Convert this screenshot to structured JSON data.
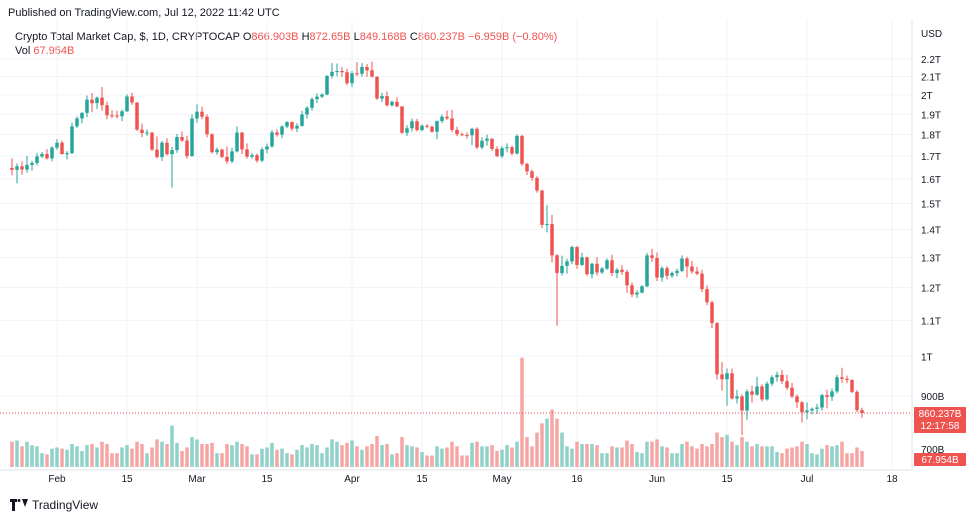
{
  "published": "Published on TradingView.com, Jul 12, 2022 11:42 UTC",
  "legend": {
    "symbol": "Crypto Total Market Cap, $, 1D, CRYPTOCAP",
    "o_label": "O",
    "o": "866.903B",
    "h_label": "H",
    "h": "872.65B",
    "l_label": "L",
    "l": "849.168B",
    "c_label": "C",
    "c": "860.237B",
    "change": "−6.959B (−0.80%)",
    "vol_label": "Vol",
    "vol": "67.954B"
  },
  "axis": {
    "currency": "USD",
    "y_ticks": [
      "2.2T",
      "2.1T",
      "2T",
      "1.9T",
      "1.8T",
      "1.7T",
      "1.6T",
      "1.5T",
      "1.4T",
      "1.3T",
      "1.2T",
      "1.1T",
      "1T",
      "900B",
      "700B"
    ],
    "x_ticks": [
      "Feb",
      "15",
      "Mar",
      "15",
      "Apr",
      "15",
      "May",
      "16",
      "Jun",
      "15",
      "Jul",
      "18"
    ],
    "price_badge": "860.237B",
    "countdown_badge": "12:17:58",
    "volume_badge": "67.954B"
  },
  "brand": "TradingView",
  "colors": {
    "up": "#26a69a",
    "down": "#ef5350",
    "vol_up": "#8fd2c9",
    "vol_down": "#f5a5a4",
    "grid": "#f0f3fa"
  },
  "chart_data": {
    "type": "candlestick",
    "title": "Crypto Total Market Cap, $, 1D, CRYPTOCAP",
    "ylabel": "USD",
    "yscale": "log",
    "ylim": [
      680,
      2300
    ],
    "x_start": "2022-01-23",
    "x_end": "2022-07-12",
    "points": [
      [
        "2022-01-23",
        1648,
        1690,
        1616,
        1640,
        0.22
      ],
      [
        "2022-01-24",
        1640,
        1668,
        1582,
        1655,
        0.23
      ],
      [
        "2022-01-25",
        1655,
        1677,
        1618,
        1641,
        0.18
      ],
      [
        "2022-01-26",
        1641,
        1701,
        1627,
        1661,
        0.22
      ],
      [
        "2022-01-27",
        1661,
        1679,
        1637,
        1670,
        0.19
      ],
      [
        "2022-01-28",
        1670,
        1715,
        1659,
        1699,
        0.18
      ],
      [
        "2022-01-29",
        1699,
        1719,
        1692,
        1710,
        0.12
      ],
      [
        "2022-01-30",
        1710,
        1732,
        1685,
        1690,
        0.11
      ],
      [
        "2022-01-31",
        1690,
        1746,
        1677,
        1739,
        0.16
      ],
      [
        "2022-02-01",
        1739,
        1779,
        1729,
        1762,
        0.17
      ],
      [
        "2022-02-02",
        1762,
        1771,
        1712,
        1709,
        0.16
      ],
      [
        "2022-02-03",
        1709,
        1723,
        1686,
        1714,
        0.15
      ],
      [
        "2022-02-04",
        1714,
        1858,
        1710,
        1840,
        0.2
      ],
      [
        "2022-02-05",
        1840,
        1889,
        1832,
        1879,
        0.18
      ],
      [
        "2022-02-06",
        1879,
        1912,
        1855,
        1907,
        0.14
      ],
      [
        "2022-02-07",
        1907,
        1997,
        1886,
        1975,
        0.19
      ],
      [
        "2022-02-08",
        1975,
        2010,
        1911,
        1957,
        0.2
      ],
      [
        "2022-02-09",
        1957,
        1992,
        1927,
        1986,
        0.17
      ],
      [
        "2022-02-10",
        1986,
        2042,
        1918,
        1946,
        0.22
      ],
      [
        "2022-02-11",
        1946,
        1964,
        1875,
        1895,
        0.2
      ],
      [
        "2022-02-12",
        1895,
        1920,
        1881,
        1894,
        0.12
      ],
      [
        "2022-02-13",
        1894,
        1918,
        1879,
        1890,
        0.12
      ],
      [
        "2022-02-14",
        1890,
        1925,
        1865,
        1915,
        0.17
      ],
      [
        "2022-02-15",
        1915,
        2003,
        1912,
        1992,
        0.19
      ],
      [
        "2022-02-16",
        1992,
        2011,
        1948,
        1960,
        0.16
      ],
      [
        "2022-02-17",
        1960,
        1963,
        1818,
        1824,
        0.22
      ],
      [
        "2022-02-18",
        1824,
        1854,
        1788,
        1808,
        0.2
      ],
      [
        "2022-02-19",
        1808,
        1825,
        1794,
        1810,
        0.12
      ],
      [
        "2022-02-20",
        1810,
        1812,
        1724,
        1730,
        0.17
      ],
      [
        "2022-02-21",
        1730,
        1792,
        1691,
        1696,
        0.24
      ],
      [
        "2022-02-22",
        1696,
        1770,
        1679,
        1762,
        0.22
      ],
      [
        "2022-02-23",
        1762,
        1783,
        1703,
        1709,
        0.2
      ],
      [
        "2022-02-24",
        1709,
        1743,
        1564,
        1728,
        0.36
      ],
      [
        "2022-02-25",
        1728,
        1804,
        1715,
        1789,
        0.21
      ],
      [
        "2022-02-26",
        1789,
        1815,
        1766,
        1772,
        0.14
      ],
      [
        "2022-02-27",
        1772,
        1795,
        1689,
        1701,
        0.17
      ],
      [
        "2022-02-28",
        1701,
        1899,
        1697,
        1879,
        0.26
      ],
      [
        "2022-03-01",
        1879,
        1951,
        1858,
        1913,
        0.24
      ],
      [
        "2022-03-02",
        1913,
        1939,
        1874,
        1888,
        0.2
      ],
      [
        "2022-03-03",
        1888,
        1901,
        1787,
        1802,
        0.2
      ],
      [
        "2022-03-04",
        1802,
        1806,
        1712,
        1718,
        0.21
      ],
      [
        "2022-03-05",
        1718,
        1739,
        1706,
        1730,
        0.12
      ],
      [
        "2022-03-06",
        1730,
        1735,
        1690,
        1697,
        0.12
      ],
      [
        "2022-03-07",
        1697,
        1744,
        1665,
        1677,
        0.2
      ],
      [
        "2022-03-08",
        1677,
        1738,
        1669,
        1722,
        0.19
      ],
      [
        "2022-03-09",
        1722,
        1840,
        1717,
        1810,
        0.22
      ],
      [
        "2022-03-10",
        1810,
        1813,
        1709,
        1731,
        0.2
      ],
      [
        "2022-03-11",
        1731,
        1759,
        1689,
        1698,
        0.18
      ],
      [
        "2022-03-12",
        1698,
        1715,
        1689,
        1705,
        0.11
      ],
      [
        "2022-03-13",
        1705,
        1712,
        1671,
        1680,
        0.11
      ],
      [
        "2022-03-14",
        1680,
        1741,
        1673,
        1731,
        0.16
      ],
      [
        "2022-03-15",
        1731,
        1758,
        1713,
        1745,
        0.17
      ],
      [
        "2022-03-16",
        1745,
        1822,
        1738,
        1811,
        0.21
      ],
      [
        "2022-03-17",
        1811,
        1826,
        1790,
        1800,
        0.15
      ],
      [
        "2022-03-18",
        1800,
        1846,
        1783,
        1839,
        0.16
      ],
      [
        "2022-03-19",
        1839,
        1865,
        1831,
        1861,
        0.12
      ],
      [
        "2022-03-20",
        1861,
        1865,
        1817,
        1829,
        0.11
      ],
      [
        "2022-03-21",
        1829,
        1855,
        1812,
        1843,
        0.15
      ],
      [
        "2022-03-22",
        1843,
        1917,
        1838,
        1899,
        0.19
      ],
      [
        "2022-03-23",
        1899,
        1941,
        1878,
        1933,
        0.17
      ],
      [
        "2022-03-24",
        1933,
        1987,
        1919,
        1978,
        0.2
      ],
      [
        "2022-03-25",
        1978,
        2008,
        1957,
        1991,
        0.19
      ],
      [
        "2022-03-26",
        1991,
        2009,
        1983,
        2002,
        0.12
      ],
      [
        "2022-03-27",
        2002,
        2108,
        1998,
        2103,
        0.17
      ],
      [
        "2022-03-28",
        2103,
        2176,
        2090,
        2126,
        0.24
      ],
      [
        "2022-03-29",
        2126,
        2174,
        2101,
        2131,
        0.22
      ],
      [
        "2022-03-30",
        2131,
        2152,
        2098,
        2124,
        0.19
      ],
      [
        "2022-03-31",
        2124,
        2143,
        2053,
        2063,
        0.21
      ],
      [
        "2022-04-01",
        2063,
        2132,
        2042,
        2118,
        0.23
      ],
      [
        "2022-04-02",
        2118,
        2181,
        2102,
        2115,
        0.18
      ],
      [
        "2022-04-03",
        2115,
        2176,
        2099,
        2154,
        0.15
      ],
      [
        "2022-04-04",
        2154,
        2170,
        2098,
        2135,
        0.18
      ],
      [
        "2022-04-05",
        2135,
        2185,
        2094,
        2099,
        0.2
      ],
      [
        "2022-04-06",
        2099,
        2101,
        1974,
        1981,
        0.27
      ],
      [
        "2022-04-07",
        1981,
        2011,
        1963,
        1994,
        0.19
      ],
      [
        "2022-04-08",
        1994,
        2019,
        1939,
        1946,
        0.2
      ],
      [
        "2022-04-09",
        1946,
        1970,
        1939,
        1964,
        0.11
      ],
      [
        "2022-04-10",
        1964,
        1988,
        1935,
        1940,
        0.12
      ],
      [
        "2022-04-11",
        1940,
        1941,
        1804,
        1809,
        0.26
      ],
      [
        "2022-04-12",
        1809,
        1846,
        1794,
        1831,
        0.19
      ],
      [
        "2022-04-13",
        1831,
        1879,
        1815,
        1865,
        0.18
      ],
      [
        "2022-04-14",
        1865,
        1877,
        1815,
        1822,
        0.17
      ],
      [
        "2022-04-15",
        1822,
        1850,
        1816,
        1843,
        0.13
      ],
      [
        "2022-04-16",
        1843,
        1851,
        1831,
        1838,
        0.1
      ],
      [
        "2022-04-17",
        1838,
        1845,
        1810,
        1814,
        0.1
      ],
      [
        "2022-04-18",
        1814,
        1869,
        1778,
        1866,
        0.18
      ],
      [
        "2022-04-19",
        1866,
        1899,
        1856,
        1888,
        0.16
      ],
      [
        "2022-04-20",
        1888,
        1919,
        1872,
        1879,
        0.17
      ],
      [
        "2022-04-21",
        1879,
        1923,
        1812,
        1823,
        0.22
      ],
      [
        "2022-04-22",
        1823,
        1838,
        1793,
        1802,
        0.18
      ],
      [
        "2022-04-23",
        1802,
        1811,
        1792,
        1798,
        0.1
      ],
      [
        "2022-04-24",
        1798,
        1811,
        1781,
        1797,
        0.1
      ],
      [
        "2022-04-25",
        1797,
        1834,
        1751,
        1828,
        0.21
      ],
      [
        "2022-04-26",
        1828,
        1836,
        1733,
        1740,
        0.22
      ],
      [
        "2022-04-27",
        1740,
        1788,
        1732,
        1771,
        0.18
      ],
      [
        "2022-04-28",
        1771,
        1800,
        1748,
        1781,
        0.18
      ],
      [
        "2022-04-29",
        1781,
        1783,
        1723,
        1733,
        0.19
      ],
      [
        "2022-04-30",
        1733,
        1746,
        1696,
        1700,
        0.14
      ],
      [
        "2022-05-01",
        1700,
        1747,
        1691,
        1737,
        0.15
      ],
      [
        "2022-05-02",
        1737,
        1759,
        1717,
        1741,
        0.19
      ],
      [
        "2022-05-03",
        1741,
        1749,
        1704,
        1712,
        0.17
      ],
      [
        "2022-05-04",
        1712,
        1802,
        1708,
        1794,
        0.22
      ],
      [
        "2022-05-05",
        1794,
        1800,
        1657,
        1666,
        0.95
      ],
      [
        "2022-05-06",
        1666,
        1671,
        1617,
        1633,
        0.26
      ],
      [
        "2022-05-07",
        1633,
        1641,
        1593,
        1605,
        0.18
      ],
      [
        "2022-05-08",
        1605,
        1612,
        1543,
        1552,
        0.3
      ],
      [
        "2022-05-09",
        1552,
        1556,
        1405,
        1417,
        0.38
      ],
      [
        "2022-05-10",
        1417,
        1493,
        1389,
        1420,
        0.42
      ],
      [
        "2022-05-11",
        1420,
        1455,
        1283,
        1307,
        0.5
      ],
      [
        "2022-05-12",
        1307,
        1311,
        1084,
        1247,
        0.42
      ],
      [
        "2022-05-13",
        1247,
        1306,
        1239,
        1271,
        0.3
      ],
      [
        "2022-05-14",
        1271,
        1295,
        1245,
        1286,
        0.18
      ],
      [
        "2022-05-15",
        1286,
        1341,
        1277,
        1336,
        0.16
      ],
      [
        "2022-05-16",
        1336,
        1340,
        1261,
        1274,
        0.22
      ],
      [
        "2022-05-17",
        1274,
        1316,
        1271,
        1300,
        0.2
      ],
      [
        "2022-05-18",
        1300,
        1302,
        1238,
        1243,
        0.2
      ],
      [
        "2022-05-19",
        1243,
        1282,
        1229,
        1278,
        0.2
      ],
      [
        "2022-05-20",
        1278,
        1301,
        1239,
        1249,
        0.19
      ],
      [
        "2022-05-21",
        1249,
        1267,
        1244,
        1262,
        0.12
      ],
      [
        "2022-05-22",
        1262,
        1296,
        1257,
        1290,
        0.12
      ],
      [
        "2022-05-23",
        1290,
        1309,
        1237,
        1247,
        0.18
      ],
      [
        "2022-05-24",
        1247,
        1264,
        1230,
        1258,
        0.17
      ],
      [
        "2022-05-25",
        1258,
        1274,
        1241,
        1251,
        0.17
      ],
      [
        "2022-05-26",
        1251,
        1258,
        1184,
        1207,
        0.23
      ],
      [
        "2022-05-27",
        1207,
        1216,
        1170,
        1178,
        0.2
      ],
      [
        "2022-05-28",
        1178,
        1192,
        1167,
        1184,
        0.13
      ],
      [
        "2022-05-29",
        1184,
        1208,
        1181,
        1204,
        0.12
      ],
      [
        "2022-05-30",
        1204,
        1316,
        1201,
        1307,
        0.22
      ],
      [
        "2022-05-31",
        1307,
        1330,
        1284,
        1298,
        0.22
      ],
      [
        "2022-06-01",
        1298,
        1317,
        1221,
        1232,
        0.24
      ],
      [
        "2022-06-02",
        1232,
        1270,
        1219,
        1263,
        0.18
      ],
      [
        "2022-06-03",
        1263,
        1270,
        1226,
        1238,
        0.17
      ],
      [
        "2022-06-04",
        1238,
        1252,
        1231,
        1247,
        0.12
      ],
      [
        "2022-06-05",
        1247,
        1262,
        1236,
        1254,
        0.12
      ],
      [
        "2022-06-06",
        1254,
        1307,
        1250,
        1296,
        0.2
      ],
      [
        "2022-06-07",
        1296,
        1302,
        1232,
        1269,
        0.22
      ],
      [
        "2022-06-08",
        1269,
        1288,
        1245,
        1252,
        0.18
      ],
      [
        "2022-06-09",
        1252,
        1268,
        1240,
        1245,
        0.16
      ],
      [
        "2022-06-10",
        1245,
        1258,
        1185,
        1195,
        0.2
      ],
      [
        "2022-06-11",
        1195,
        1207,
        1145,
        1154,
        0.18
      ],
      [
        "2022-06-12",
        1154,
        1159,
        1078,
        1092,
        0.2
      ],
      [
        "2022-06-13",
        1092,
        1095,
        940,
        953,
        0.3
      ],
      [
        "2022-06-14",
        953,
        985,
        913,
        941,
        0.26
      ],
      [
        "2022-06-15",
        941,
        968,
        877,
        956,
        0.28
      ],
      [
        "2022-06-16",
        956,
        968,
        892,
        894,
        0.22
      ],
      [
        "2022-06-17",
        894,
        915,
        882,
        899,
        0.19
      ],
      [
        "2022-06-18",
        899,
        904,
        811,
        866,
        0.26
      ],
      [
        "2022-06-19",
        866,
        916,
        845,
        911,
        0.22
      ],
      [
        "2022-06-20",
        911,
        925,
        884,
        903,
        0.18
      ],
      [
        "2022-06-21",
        903,
        947,
        901,
        923,
        0.2
      ],
      [
        "2022-06-22",
        923,
        928,
        887,
        892,
        0.18
      ],
      [
        "2022-06-23",
        892,
        935,
        889,
        930,
        0.18
      ],
      [
        "2022-06-24",
        930,
        951,
        924,
        946,
        0.18
      ],
      [
        "2022-06-25",
        946,
        960,
        935,
        952,
        0.13
      ],
      [
        "2022-06-26",
        952,
        965,
        929,
        936,
        0.12
      ],
      [
        "2022-06-27",
        936,
        952,
        914,
        920,
        0.16
      ],
      [
        "2022-06-28",
        920,
        932,
        895,
        899,
        0.17
      ],
      [
        "2022-06-29",
        899,
        904,
        872,
        885,
        0.18
      ],
      [
        "2022-06-30",
        885,
        888,
        839,
        862,
        0.22
      ],
      [
        "2022-07-01",
        862,
        885,
        846,
        866,
        0.2
      ],
      [
        "2022-07-02",
        866,
        873,
        857,
        870,
        0.12
      ],
      [
        "2022-07-03",
        870,
        881,
        858,
        873,
        0.11
      ],
      [
        "2022-07-04",
        873,
        905,
        866,
        902,
        0.16
      ],
      [
        "2022-07-05",
        902,
        915,
        871,
        898,
        0.19
      ],
      [
        "2022-07-06",
        898,
        918,
        888,
        911,
        0.18
      ],
      [
        "2022-07-07",
        911,
        952,
        906,
        946,
        0.19
      ],
      [
        "2022-07-08",
        946,
        970,
        932,
        942,
        0.22
      ],
      [
        "2022-07-09",
        942,
        950,
        931,
        939,
        0.12
      ],
      [
        "2022-07-10",
        939,
        941,
        907,
        910,
        0.12
      ],
      [
        "2022-07-11",
        910,
        914,
        862,
        867,
        0.17
      ],
      [
        "2022-07-12",
        866.903,
        872.65,
        849.168,
        860.237,
        0.14
      ]
    ]
  }
}
